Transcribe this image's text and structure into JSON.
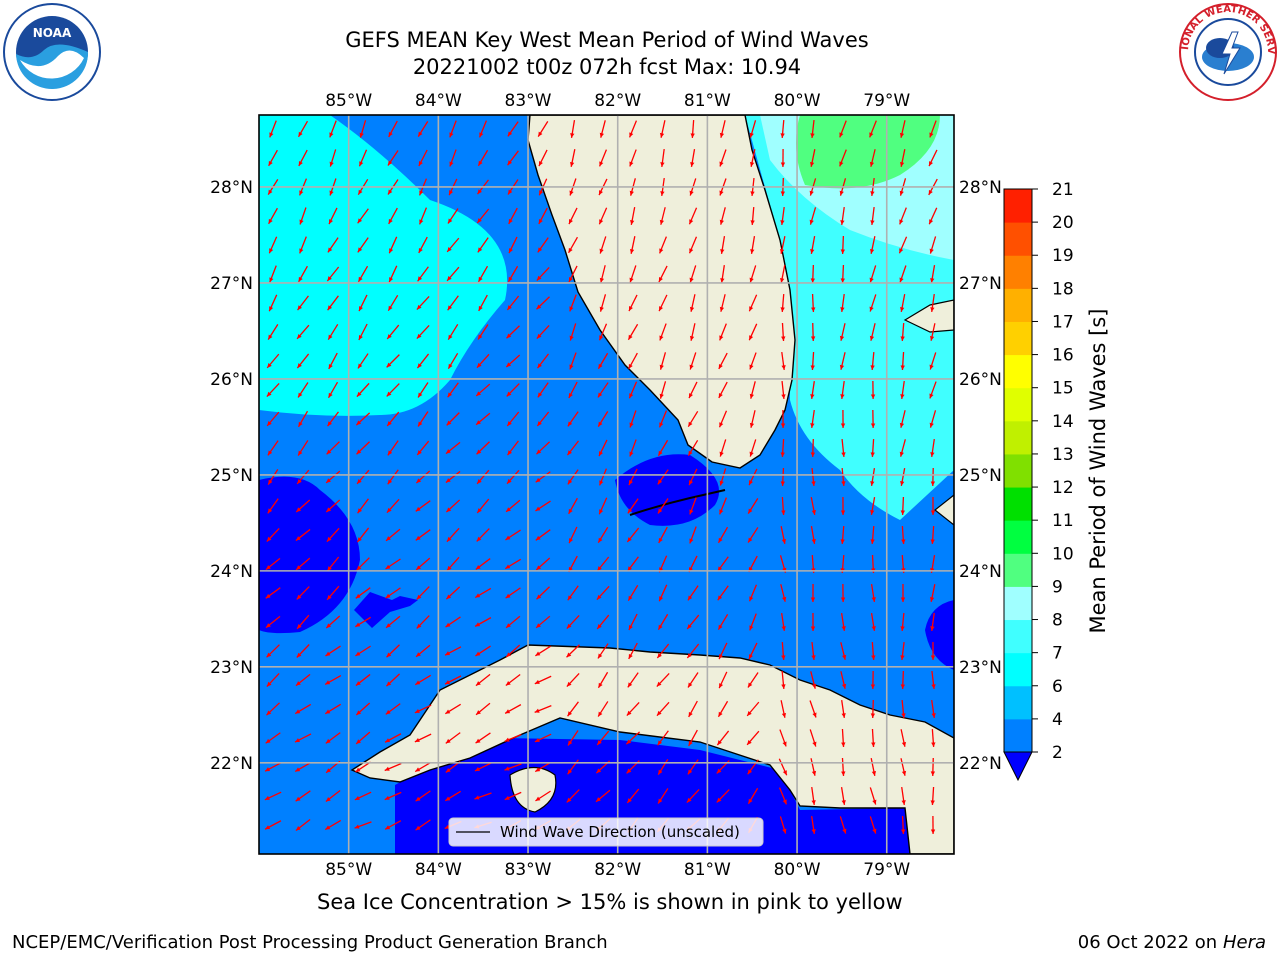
{
  "title": {
    "line1": "GEFS MEAN Key West Mean Period of Wind Waves",
    "line2": "20221002 t00z 072h fcst   Max: 10.94"
  },
  "map": {
    "lon_range": [
      -86.0,
      -78.25
    ],
    "lat_range": [
      21.05,
      28.75
    ],
    "lon_ticks": [
      "85°W",
      "84°W",
      "83°W",
      "82°W",
      "81°W",
      "80°W",
      "79°W"
    ],
    "lat_ticks": [
      "28°N",
      "27°N",
      "26°N",
      "25°N",
      "24°N",
      "23°N",
      "22°N"
    ],
    "grid": true,
    "legend_label": "Wind Wave Direction (unscaled)",
    "legend_placement": "bottom-center",
    "arrow_color": "#ff0000",
    "land_color": "#efefdb",
    "coast_color": "#000000"
  },
  "colorbar": {
    "label": "Mean Period of Wind Waves [s]",
    "ticks": [
      "2",
      "4",
      "6",
      "7",
      "8",
      "9",
      "10",
      "11",
      "12",
      "13",
      "14",
      "15",
      "16",
      "17",
      "18",
      "19",
      "20",
      "21"
    ],
    "colors": [
      "#0080ff",
      "#00c0ff",
      "#00ffff",
      "#40ffff",
      "#a0ffff",
      "#50ff80",
      "#00ff40",
      "#00e000",
      "#80e000",
      "#c0f000",
      "#e0ff00",
      "#ffff00",
      "#ffd000",
      "#ffb000",
      "#ff8000",
      "#ff5000",
      "#ff2000"
    ],
    "under_color": "#0000ff"
  },
  "note": "Sea Ice Concentration > 15% is shown in pink to yellow",
  "footer": {
    "left": "NCEP/EMC/Verification Post Processing Product Generation Branch",
    "date": "06 Oct 2022 on ",
    "machine": "Hera"
  },
  "logos": {
    "noaa_text": "NOAA",
    "nws_text": "NATIONAL WEATHER SERVICE"
  }
}
